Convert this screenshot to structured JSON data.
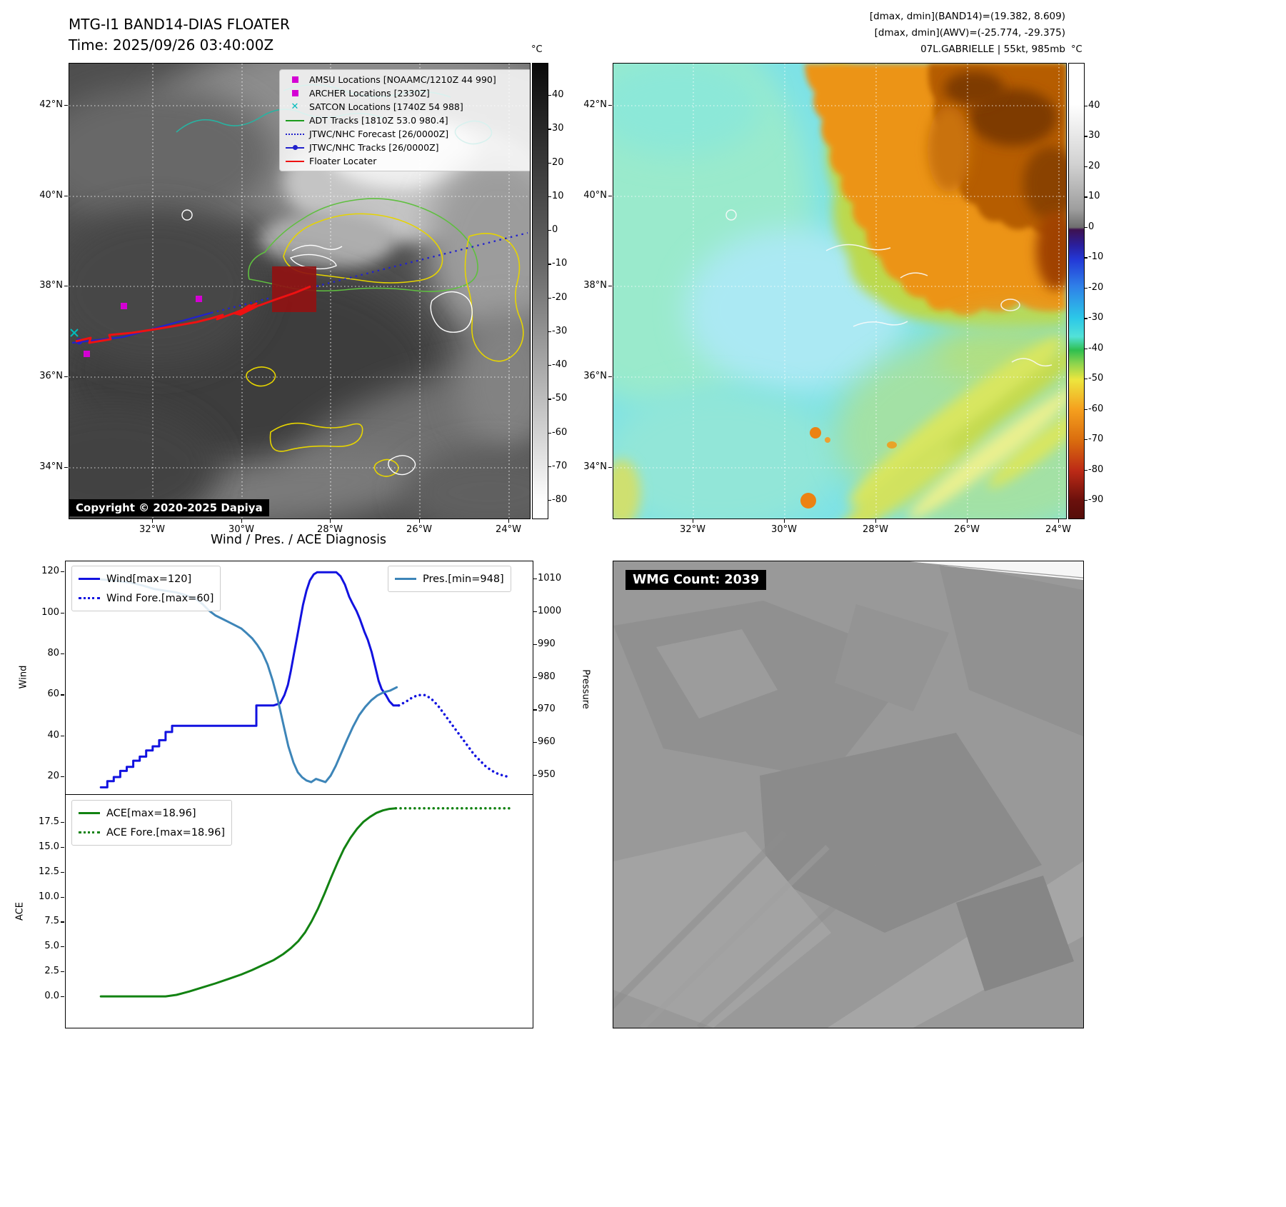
{
  "band14_panel": {
    "title_line1": "MTG-I1 BAND14-DIAS FLOATER",
    "title_line2": "Time: 2025/09/26 03:40:00Z",
    "copyright": "Copyright © 2020-2025 Dapiya",
    "legend_items": [
      {
        "marker": "magenta-square",
        "color": "#d400d4",
        "label": "AMSU Locations [NOAAMC/1210Z 44 990]"
      },
      {
        "marker": "magenta-square",
        "color": "#d400d4",
        "label": "ARCHER Locations [2330Z]"
      },
      {
        "marker": "cyan-x",
        "color": "#00bcbc",
        "label": "SATCON Locations [1740Z 54 988]"
      },
      {
        "marker": "green-line",
        "color": "#1c9c1c",
        "label": "ADT Tracks [1810Z 53.0 980.4]"
      },
      {
        "marker": "blue-dotted-line",
        "color": "#2222cc",
        "label": "JTWC/NHC Forecast [26/0000Z]"
      },
      {
        "marker": "blue-marker-line",
        "color": "#2222cc",
        "label": "JTWC/NHC Tracks [26/0000Z]"
      },
      {
        "marker": "red-line",
        "color": "#ee1111",
        "label": "Floater Locater"
      }
    ],
    "lat_ticks": [
      "42°N",
      "40°N",
      "38°N",
      "36°N",
      "34°N"
    ],
    "lon_ticks": [
      "32°W",
      "30°W",
      "28°W",
      "26°W",
      "24°W"
    ],
    "colorbar": {
      "unit": "°C",
      "ticks": [
        40,
        30,
        20,
        10,
        0,
        -10,
        -20,
        -30,
        -40,
        -50,
        -60,
        -70,
        -80
      ]
    }
  },
  "awv_panel": {
    "info_line1": "[dmax, dmin](BAND14)=(19.382, 8.609)",
    "info_line2": "[dmax, dmin](AWV)=(-25.774, -29.375)",
    "info_line3": "07L.GABRIELLE | 55kt, 985mb",
    "lat_ticks": [
      "42°N",
      "40°N",
      "38°N",
      "36°N",
      "34°N"
    ],
    "lon_ticks": [
      "32°W",
      "30°W",
      "28°W",
      "26°W",
      "24°W"
    ],
    "colorbar": {
      "unit": "°C",
      "ticks": [
        40,
        30,
        20,
        10,
        0,
        -10,
        -20,
        -30,
        -40,
        -50,
        -60,
        -70,
        -80,
        -90
      ]
    }
  },
  "diagnosis_panel": {
    "title": "Wind / Pres. / ACE Diagnosis",
    "ylabel_wind": "Wind",
    "ylabel_pressure": "Pressure",
    "ylabel_ace": "ACE"
  },
  "wmg_panel": {
    "count_label": "WMG Count: 2039"
  },
  "chart_data": [
    {
      "type": "line",
      "title": "Wind / Pres. / ACE Diagnosis",
      "xlim": [
        0,
        1
      ],
      "ylabel_left": "Wind",
      "ylabel_right": "Pressure",
      "ylim_left": [
        11.3,
        125.3
      ],
      "ylim_right": [
        944.1,
        1015.5
      ],
      "yticks_left": [
        20,
        40,
        60,
        80,
        100,
        120
      ],
      "yticks_right": [
        950,
        960,
        970,
        980,
        990,
        1000,
        1010
      ],
      "ytick_decimals_left": 0,
      "legend_position": "upper left / upper right",
      "grid": false,
      "series": [
        {
          "name": "Wind[max=120]",
          "color": "#1212e0",
          "style": "solid",
          "axis": "left",
          "points": [
            [
              0.04,
              15
            ],
            [
              0.055,
              15
            ],
            [
              0.055,
              18
            ],
            [
              0.07,
              18
            ],
            [
              0.07,
              20
            ],
            [
              0.085,
              20
            ],
            [
              0.085,
              23
            ],
            [
              0.1,
              23
            ],
            [
              0.1,
              25
            ],
            [
              0.115,
              25
            ],
            [
              0.115,
              28
            ],
            [
              0.13,
              28
            ],
            [
              0.13,
              30
            ],
            [
              0.145,
              30
            ],
            [
              0.145,
              33
            ],
            [
              0.16,
              33
            ],
            [
              0.16,
              35
            ],
            [
              0.175,
              35
            ],
            [
              0.175,
              38
            ],
            [
              0.19,
              38
            ],
            [
              0.19,
              42
            ],
            [
              0.205,
              42
            ],
            [
              0.205,
              45
            ],
            [
              0.4,
              45
            ],
            [
              0.4,
              55
            ],
            [
              0.44,
              55
            ],
            [
              0.455,
              56
            ],
            [
              0.465,
              60
            ],
            [
              0.473,
              65
            ],
            [
              0.48,
              72
            ],
            [
              0.487,
              80
            ],
            [
              0.494,
              88
            ],
            [
              0.501,
              96
            ],
            [
              0.508,
              104
            ],
            [
              0.516,
              111
            ],
            [
              0.524,
              116
            ],
            [
              0.533,
              119
            ],
            [
              0.541,
              120
            ],
            [
              0.585,
              120
            ],
            [
              0.595,
              118
            ],
            [
              0.605,
              114
            ],
            [
              0.615,
              108
            ],
            [
              0.622,
              105
            ],
            [
              0.632,
              101
            ],
            [
              0.64,
              97
            ],
            [
              0.65,
              91
            ],
            [
              0.658,
              87
            ],
            [
              0.667,
              81
            ],
            [
              0.675,
              74
            ],
            [
              0.683,
              67
            ],
            [
              0.69,
              63
            ],
            [
              0.7,
              60
            ],
            [
              0.708,
              57
            ],
            [
              0.717,
              55
            ],
            [
              0.73,
              55
            ]
          ]
        },
        {
          "name": "Wind Fore.[max=60]",
          "color": "#1212e0",
          "style": "dotted",
          "axis": "left",
          "points": [
            [
              0.73,
              55
            ],
            [
              0.748,
              57
            ],
            [
              0.762,
              59
            ],
            [
              0.775,
              60
            ],
            [
              0.792,
              60
            ],
            [
              0.806,
              58
            ],
            [
              0.82,
              55
            ],
            [
              0.834,
              51
            ],
            [
              0.848,
              47
            ],
            [
              0.862,
              43
            ],
            [
              0.876,
              39
            ],
            [
              0.89,
              35
            ],
            [
              0.904,
              31
            ],
            [
              0.918,
              28
            ],
            [
              0.932,
              25
            ],
            [
              0.946,
              23
            ],
            [
              0.96,
              21.5
            ],
            [
              0.975,
              20.5
            ],
            [
              0.988,
              20
            ]
          ]
        },
        {
          "name": "Pres.[min=948]",
          "color": "#3d85b8",
          "style": "solid",
          "axis": "right",
          "points": [
            [
              0.04,
              1010
            ],
            [
              0.08,
              1009.5
            ],
            [
              0.11,
              1009
            ],
            [
              0.14,
              1008
            ],
            [
              0.165,
              1007
            ],
            [
              0.19,
              1006.5
            ],
            [
              0.215,
              1006
            ],
            [
              0.24,
              1005
            ],
            [
              0.26,
              1004
            ],
            [
              0.275,
              1002.5
            ],
            [
              0.29,
              1000.5
            ],
            [
              0.305,
              999
            ],
            [
              0.32,
              998
            ],
            [
              0.335,
              997
            ],
            [
              0.35,
              996
            ],
            [
              0.365,
              995
            ],
            [
              0.378,
              993.5
            ],
            [
              0.39,
              992
            ],
            [
              0.402,
              990
            ],
            [
              0.414,
              987.5
            ],
            [
              0.426,
              984
            ],
            [
              0.438,
              979
            ],
            [
              0.45,
              973
            ],
            [
              0.462,
              966
            ],
            [
              0.474,
              959
            ],
            [
              0.486,
              954
            ],
            [
              0.496,
              951
            ],
            [
              0.506,
              949.5
            ],
            [
              0.516,
              948.5
            ],
            [
              0.527,
              948
            ],
            [
              0.538,
              949
            ],
            [
              0.549,
              948.5
            ],
            [
              0.56,
              948
            ],
            [
              0.572,
              950
            ],
            [
              0.584,
              953
            ],
            [
              0.597,
              957
            ],
            [
              0.61,
              961
            ],
            [
              0.624,
              965
            ],
            [
              0.638,
              968.5
            ],
            [
              0.652,
              971
            ],
            [
              0.666,
              973
            ],
            [
              0.68,
              974.5
            ],
            [
              0.695,
              975.5
            ],
            [
              0.71,
              976
            ],
            [
              0.725,
              977
            ]
          ]
        }
      ]
    },
    {
      "type": "line",
      "xlim": [
        0,
        1
      ],
      "ylabel_left": "ACE",
      "ylim_left": [
        -3.1,
        20.31
      ],
      "yticks_left": [
        0,
        2.5,
        5,
        7.5,
        10,
        12.5,
        15,
        17.5
      ],
      "ytick_decimals_left": 1,
      "legend_position": "upper left",
      "grid": false,
      "series": [
        {
          "name": "ACE[max=18.96]",
          "color": "#128212",
          "style": "solid",
          "axis": "left",
          "points": [
            [
              0.04,
              0.05
            ],
            [
              0.19,
              0.05
            ],
            [
              0.215,
              0.2
            ],
            [
              0.245,
              0.55
            ],
            [
              0.275,
              0.95
            ],
            [
              0.305,
              1.35
            ],
            [
              0.335,
              1.8
            ],
            [
              0.365,
              2.25
            ],
            [
              0.39,
              2.7
            ],
            [
              0.415,
              3.2
            ],
            [
              0.44,
              3.7
            ],
            [
              0.462,
              4.3
            ],
            [
              0.48,
              4.9
            ],
            [
              0.497,
              5.6
            ],
            [
              0.513,
              6.5
            ],
            [
              0.528,
              7.6
            ],
            [
              0.543,
              8.9
            ],
            [
              0.558,
              10.4
            ],
            [
              0.573,
              12
            ],
            [
              0.588,
              13.5
            ],
            [
              0.603,
              14.9
            ],
            [
              0.618,
              16
            ],
            [
              0.633,
              16.9
            ],
            [
              0.648,
              17.6
            ],
            [
              0.663,
              18.1
            ],
            [
              0.678,
              18.5
            ],
            [
              0.693,
              18.75
            ],
            [
              0.708,
              18.9
            ],
            [
              0.723,
              18.96
            ]
          ]
        },
        {
          "name": "ACE Fore.[max=18.96]",
          "color": "#128212",
          "style": "dotted",
          "axis": "left",
          "points": [
            [
              0.723,
              18.96
            ],
            [
              0.8,
              18.96
            ],
            [
              0.88,
              18.96
            ],
            [
              0.99,
              18.96
            ]
          ]
        }
      ]
    }
  ]
}
